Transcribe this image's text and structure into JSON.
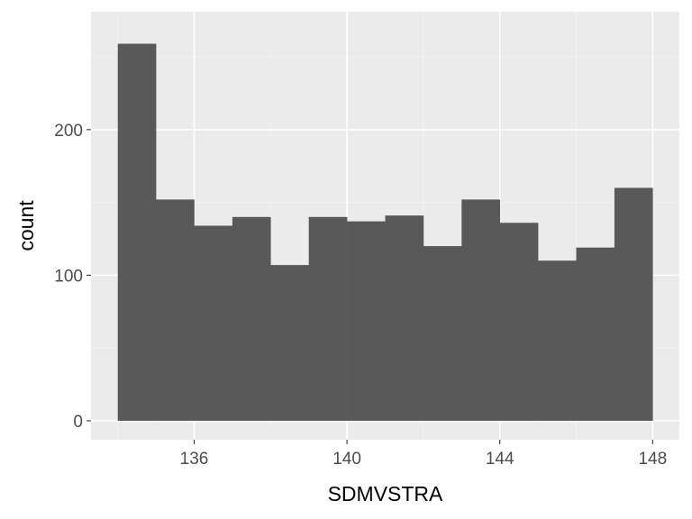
{
  "chart_data": {
    "type": "bar",
    "subtype": "histogram",
    "title": "",
    "xlabel": "SDMVSTRA",
    "ylabel": "count",
    "xlim": [
      133.3,
      148.7
    ],
    "ylim": [
      -13,
      281
    ],
    "x_ticks": [
      136,
      140,
      144,
      148
    ],
    "x_tick_labels": [
      "136",
      "140",
      "144",
      "148"
    ],
    "y_ticks": [
      0,
      100,
      200
    ],
    "y_tick_labels": [
      "0",
      "100",
      "200"
    ],
    "bins": [
      {
        "x_start": 134,
        "x_end": 135,
        "count": 259
      },
      {
        "x_start": 135,
        "x_end": 136,
        "count": 152
      },
      {
        "x_start": 136,
        "x_end": 137,
        "count": 134
      },
      {
        "x_start": 137,
        "x_end": 138,
        "count": 140
      },
      {
        "x_start": 138,
        "x_end": 139,
        "count": 107
      },
      {
        "x_start": 139,
        "x_end": 140,
        "count": 140
      },
      {
        "x_start": 140,
        "x_end": 141,
        "count": 137
      },
      {
        "x_start": 141,
        "x_end": 142,
        "count": 141
      },
      {
        "x_start": 142,
        "x_end": 143,
        "count": 120
      },
      {
        "x_start": 143,
        "x_end": 144,
        "count": 152
      },
      {
        "x_start": 144,
        "x_end": 145,
        "count": 136
      },
      {
        "x_start": 145,
        "x_end": 146,
        "count": 110
      },
      {
        "x_start": 146,
        "x_end": 147,
        "count": 119
      },
      {
        "x_start": 147,
        "x_end": 148,
        "count": 160
      }
    ],
    "grid": true,
    "legend": "none",
    "colors": {
      "panel_background": "#ebebeb",
      "grid_major": "#ffffff",
      "grid_minor": "#f2f2f2",
      "bar_fill": "#595959",
      "tick_color": "#333333",
      "tick_label_color": "#4d4d4d",
      "axis_title_color": "#000000"
    }
  }
}
